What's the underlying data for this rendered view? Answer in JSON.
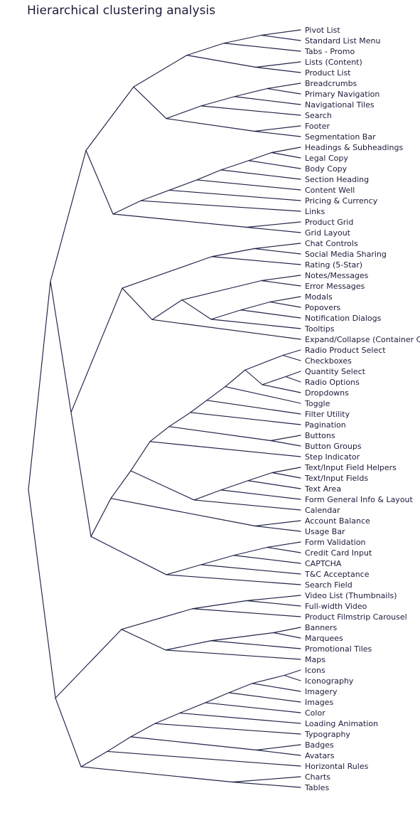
{
  "title": "Hierarchical clustering analysis",
  "colors": {
    "link": "#1f2347",
    "label": "#1d1b3a",
    "title": "#1d1b3a",
    "background": "#ffffff"
  },
  "chart_data": {
    "type": "dendrogram",
    "orientation": "horizontal",
    "title": "Hierarchical clustering analysis",
    "leaves": [
      "Pivot List",
      "Standard List Menu",
      "Tabs - Promo",
      "Lists (Content)",
      "Product List",
      "Breadcrumbs",
      "Primary Navigation",
      "Navigational Tiles",
      "Search",
      "Footer",
      "Segmentation Bar",
      "Headings & Subheadings",
      "Legal Copy",
      "Body Copy",
      "Section Heading",
      "Content Well",
      "Pricing & Currency",
      "Links",
      "Product Grid",
      "Grid Layout",
      "Chat Controls",
      "Social Media Sharing",
      "Rating (5-Star)",
      "Notes/Messages",
      "Error Messages",
      "Modals",
      "Popovers",
      "Notification Dialogs",
      "Tooltips",
      "Expand/Collapse (Container Co",
      "Radio Product Select",
      "Checkboxes",
      "Quantity Select",
      "Radio Options",
      "Dropdowns",
      "Toggle",
      "Filter Utility",
      "Pagination",
      "Buttons",
      "Button Groups",
      "Step Indicator",
      "Text/Input Field Helpers",
      "Text/Input Fields",
      "Text Area",
      "Form General Info & Layout",
      "Calendar",
      "Account Balance",
      "Usage Bar",
      "Form Validation",
      "Credit Card Input",
      "CAPTCHA",
      "T&C Acceptance",
      "Search Field",
      "Video List (Thumbnails)",
      "Full-width Video",
      "Product Filmstrip Carousel",
      "Banners",
      "Marquees",
      "Promotional Tiles",
      "Maps",
      "Icons",
      "Iconography",
      "Imagery",
      "Images",
      "Color",
      "Loading Animation",
      "Typography",
      "Badges",
      "Avatars",
      "Horizontal Rules",
      "Charts",
      "Tables"
    ],
    "tree": [
      [
        [
          [
            [
              [
                [
                  [
                    "Pivot List",
                    "Standard List Menu",
                    0.064
                  ],
                  "Tabs - Promo",
                  0.128
                ],
                [
                  "Lists (Content)",
                  "Product List",
                  0.073
                ],
                0.277
              ],
              [
                [
                  [
                    "Breadcrumbs",
                    "Primary Navigation",
                    0.085
                  ],
                  "Navigational Tiles",
                  0.176
                ],
                "Search",
                0.261
              ],
              0.5
            ],
            [
              [
                [
                  [
                    [
                      [
                        [
                          "Headings & Subheadings",
                          "Legal Copy",
                          0.049
                        ],
                        "Body Copy",
                        0.101
                      ],
                      "Section Heading",
                      0.197
                    ],
                    "Content Well",
                    0.278
                  ],
                  "Pricing & Currency",
                  0.391
                ],
                "Links",
                0.483
              ],
              [
                "Product Grid",
                "Grid Layout",
                0.095
              ],
              0.56
            ],
            0.633
          ],
          "Footer",
          0.0
        ],
        [
          0,
          0
        ],
        0
      ]
    ]
  }
}
